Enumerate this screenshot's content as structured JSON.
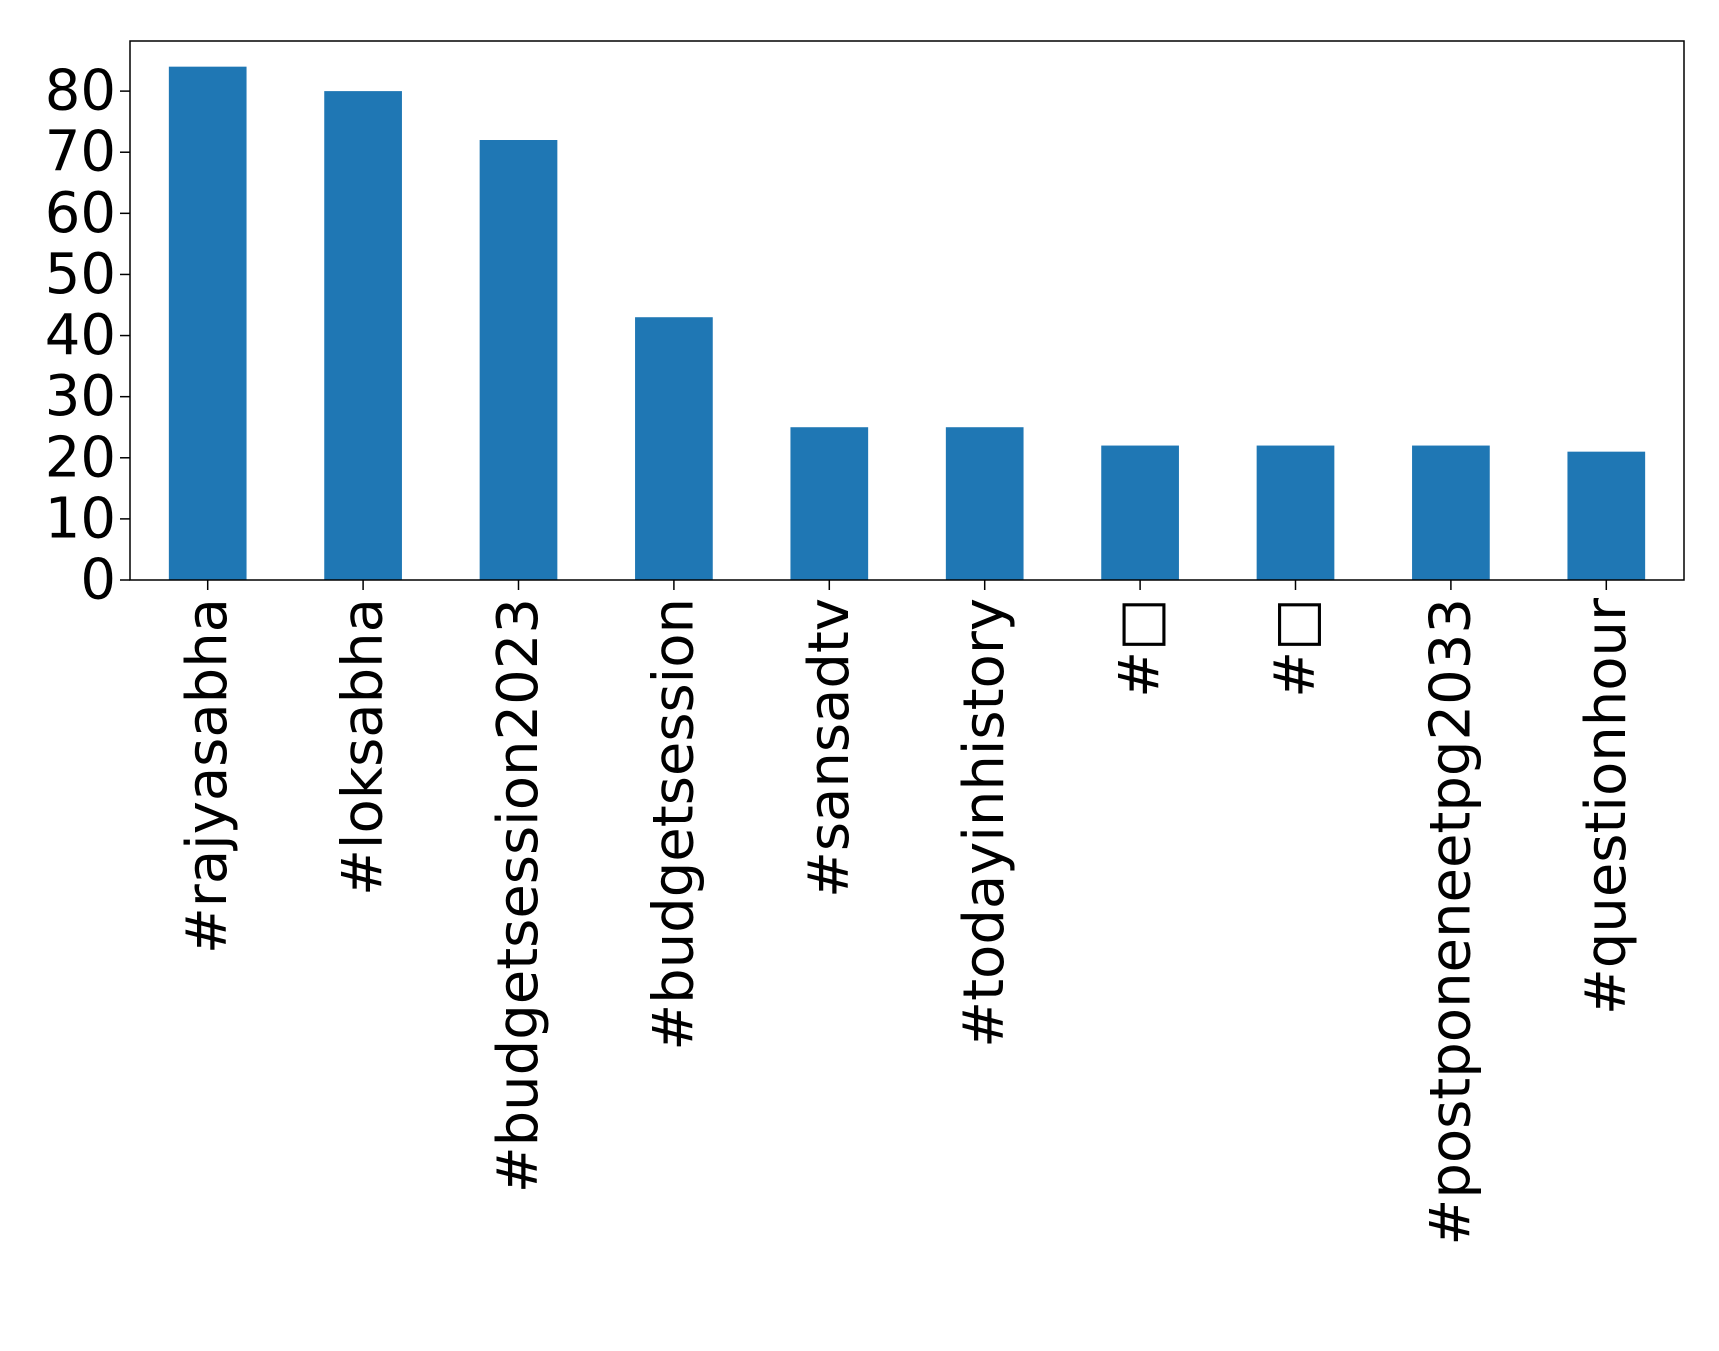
{
  "chart_data": {
    "type": "bar",
    "title": "",
    "xlabel": "",
    "ylabel": "",
    "categories": [
      "#rajyasabha",
      "#loksabha",
      "#budgetsession2023",
      "#budgetsession",
      "#sansadtv",
      "#todayinhistory",
      "#□",
      "#□",
      "#postponeneetpg2033",
      "#questionhour"
    ],
    "values": [
      84,
      80,
      72,
      43,
      25,
      25,
      22,
      22,
      22,
      21
    ],
    "ylim": [
      0,
      88.2
    ],
    "yticks": [
      0,
      10,
      20,
      30,
      40,
      50,
      60,
      70,
      80
    ],
    "bar_color": "#1f77b4",
    "grid": false,
    "legend": "none"
  }
}
